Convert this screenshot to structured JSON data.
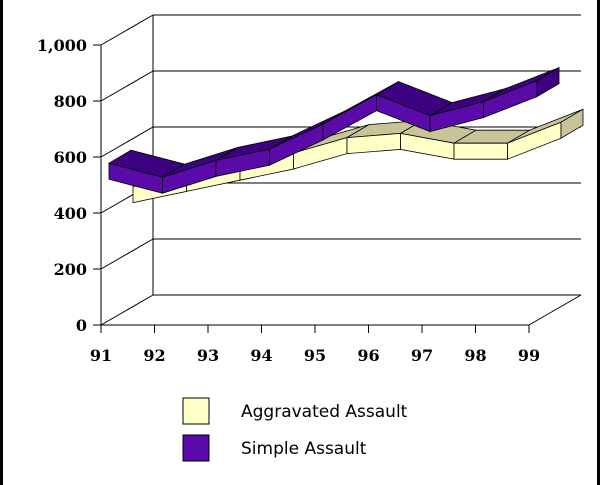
{
  "chart_data": {
    "type": "line",
    "style": "3d-ribbon",
    "categories": [
      "91",
      "92",
      "93",
      "94",
      "95",
      "96",
      "97",
      "98",
      "99"
    ],
    "series": [
      {
        "name": "Aggravated Assault",
        "values": [
          430,
          470,
          510,
          550,
          605,
          620,
          585,
          585,
          660
        ],
        "color": "#ffffc8",
        "top_color": "#c8c49a"
      },
      {
        "name": "Simple Assault",
        "values": [
          560,
          510,
          570,
          610,
          700,
          805,
          730,
          780,
          855
        ],
        "color": "#5a0aa8",
        "top_color": "#3c0080"
      }
    ],
    "yticks": [
      "0",
      "200",
      "400",
      "600",
      "800",
      "1,000"
    ],
    "ylim": [
      0,
      1000
    ],
    "grid": true,
    "legend_position": "bottom"
  }
}
